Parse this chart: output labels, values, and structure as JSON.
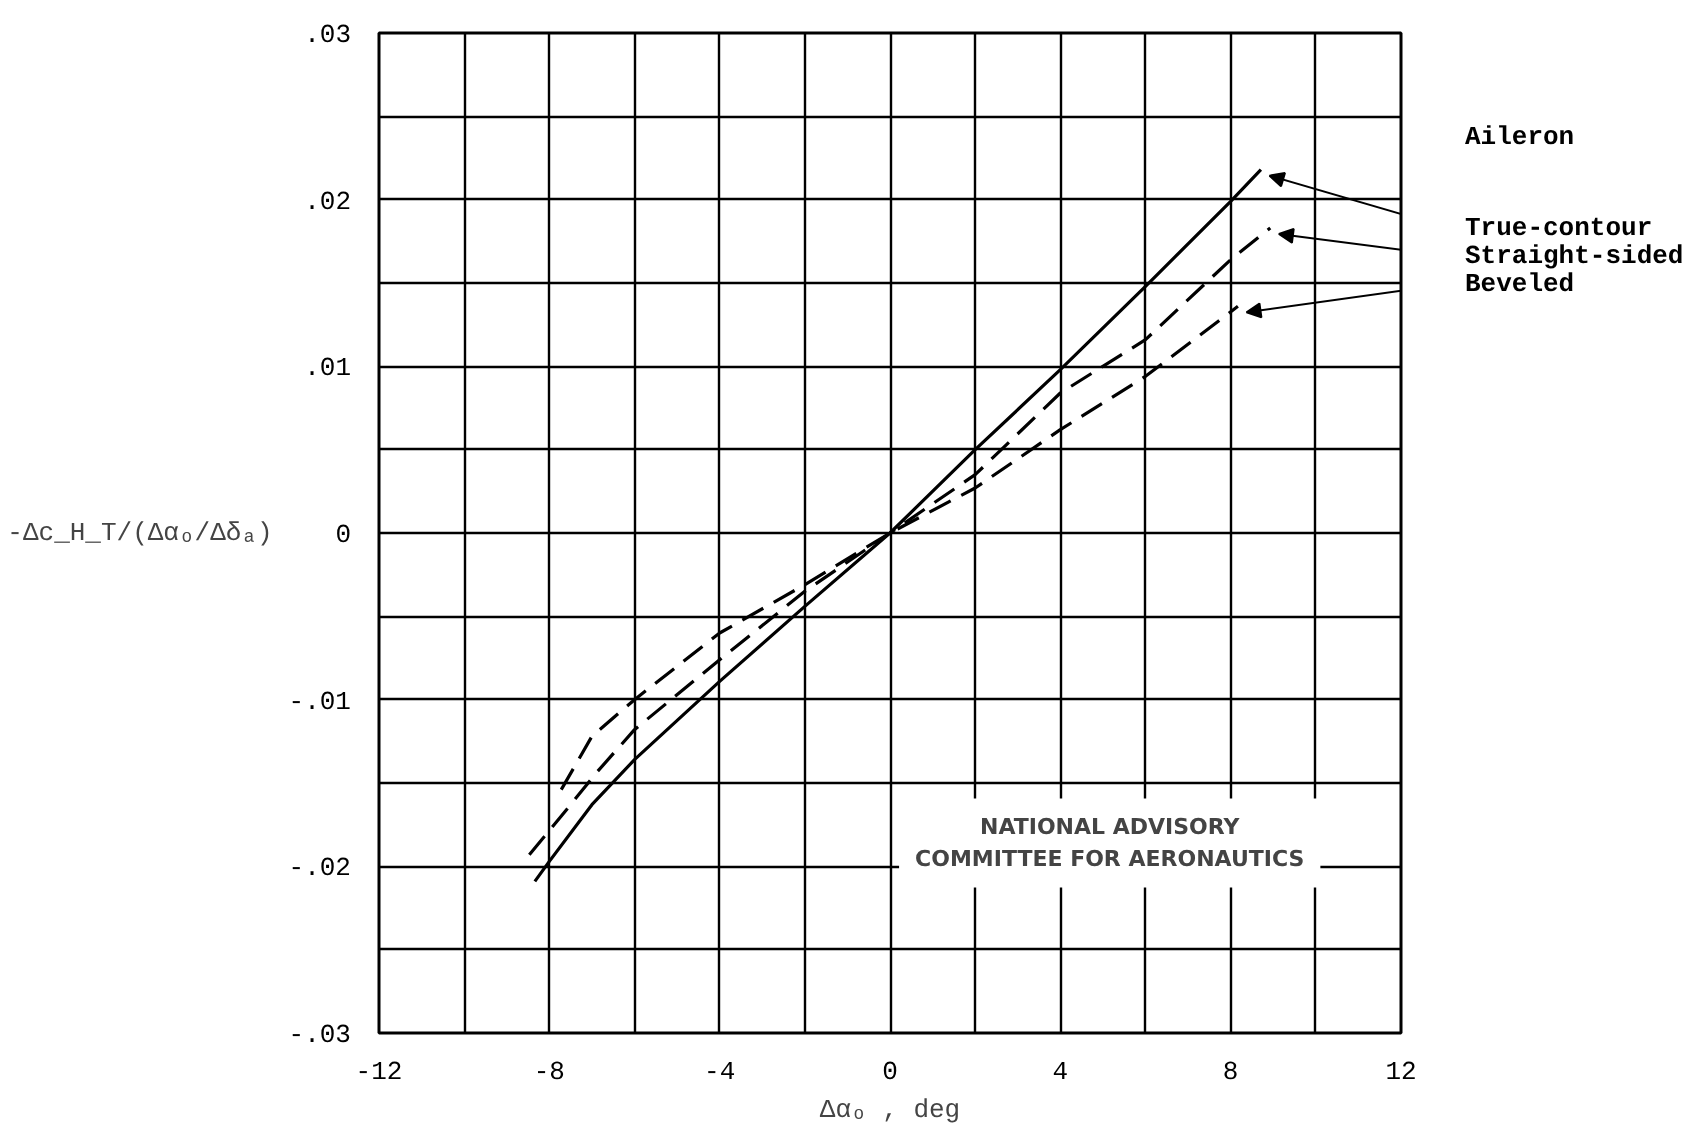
{
  "chart_data": {
    "type": "line",
    "xlabel": "Δαₒ , deg",
    "ylabel": "-Δc_H_T/(Δαₒ/Δδₐ)",
    "legend_title": "Aileron",
    "xlim": [
      -12,
      12
    ],
    "ylim": [
      -0.03,
      0.03
    ],
    "xticks": [
      -12,
      {
        "value": -10,
        "label": null
      },
      -8,
      {
        "value": -6,
        "label": null
      },
      -4,
      {
        "value": -2,
        "label": null
      },
      0,
      {
        "value": 2,
        "label": null
      },
      4,
      {
        "value": 6,
        "label": null
      },
      8,
      {
        "value": 10,
        "label": null
      },
      12
    ],
    "yticks": [
      {
        "value": -0.03,
        "label": "-.03"
      },
      {
        "value": -0.025,
        "label": null
      },
      {
        "value": -0.02,
        "label": "-.02"
      },
      {
        "value": -0.015,
        "label": null
      },
      {
        "value": -0.01,
        "label": "-.01"
      },
      {
        "value": -0.005,
        "label": null
      },
      0,
      {
        "value": 0.005,
        "label": null
      },
      {
        "value": 0.01,
        "label": ".01"
      },
      {
        "value": 0.015,
        "label": null
      },
      {
        "value": 0.02,
        "label": ".02"
      },
      {
        "value": 0.025,
        "label": null
      },
      {
        "value": 0.03,
        "label": ".03"
      }
    ],
    "grid": true,
    "legend": false,
    "series": [
      {
        "name": "True-contour",
        "color": "#000000",
        "line_style": "solid",
        "x": [
          -8.34,
          -8,
          -7,
          -6,
          -4,
          -2,
          0,
          2,
          4,
          6,
          8,
          8.71
        ],
        "values": [
          -0.0209,
          -0.0197,
          -0.0163,
          -0.0136,
          -0.0089,
          -0.0044,
          0,
          0.005,
          0.0098,
          0.0148,
          0.0199,
          0.0218
        ]
      },
      {
        "name": "Straight-sided",
        "color": "#000000",
        "line_style": "dashed",
        "x": [
          -8.47,
          -7.5,
          -6.9,
          -6,
          -4,
          -2,
          0,
          2,
          4,
          6,
          8,
          8.93
        ],
        "values": [
          -0.0193,
          -0.0163,
          -0.0144,
          -0.0118,
          -0.0076,
          -0.0035,
          0,
          0.0035,
          0.0084,
          0.0116,
          0.0164,
          0.0183
        ]
      },
      {
        "name": "Beveled",
        "color": "#000000",
        "line_style": "dashed",
        "x": [
          -7.72,
          -7,
          -6,
          -4,
          -2,
          0,
          2,
          4,
          6,
          8.17
        ],
        "values": [
          -0.0154,
          -0.0122,
          -0.01,
          -0.006,
          -0.0031,
          0,
          0.0027,
          0.0062,
          0.0094,
          0.0136
        ]
      }
    ],
    "annotations": [
      "NATIONAL ADVISORY\nCOMMITTEE FOR AERONAUTICS"
    ]
  }
}
